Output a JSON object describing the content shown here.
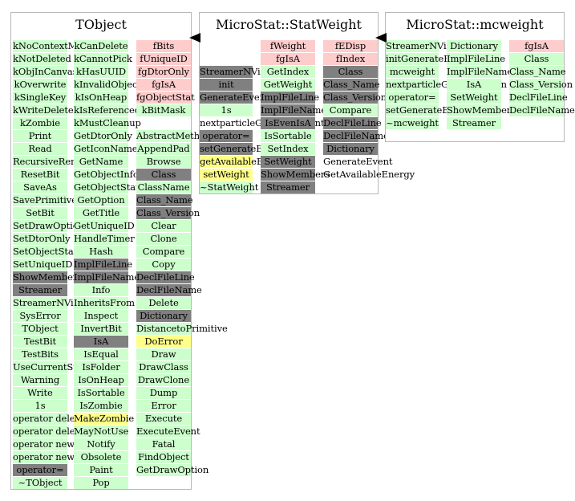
{
  "colors": {
    "pink": "#ffcccc",
    "green": "#ccffcc",
    "gray": "#808080",
    "yellow": "#ffff88",
    "border": "#b8b8b8"
  },
  "boxes": [
    {
      "title": "TObject",
      "columns": [
        [
          {
            "t": "kNoContextMenu",
            "c": "green"
          },
          {
            "t": "kNotDeleted",
            "c": "green"
          },
          {
            "t": "kObjInCanvas",
            "c": "green"
          },
          {
            "t": "kOverwrite",
            "c": "green"
          },
          {
            "t": "kSingleKey",
            "c": "green"
          },
          {
            "t": "kWriteDelete",
            "c": "green"
          },
          {
            "t": "kZombie",
            "c": "green"
          },
          {
            "t": "Print",
            "c": "green"
          },
          {
            "t": "Read",
            "c": "green"
          },
          {
            "t": "RecursiveRemove",
            "c": "green"
          },
          {
            "t": "ResetBit",
            "c": "green"
          },
          {
            "t": "SaveAs",
            "c": "green"
          },
          {
            "t": "SavePrimitive",
            "c": "green"
          },
          {
            "t": "SetBit",
            "c": "green"
          },
          {
            "t": "SetDrawOption",
            "c": "green"
          },
          {
            "t": "SetDtorOnly",
            "c": "green"
          },
          {
            "t": "SetObjectStat",
            "c": "green"
          },
          {
            "t": "SetUniqueID",
            "c": "green"
          },
          {
            "t": "ShowMembers",
            "c": "gray"
          },
          {
            "t": "Streamer",
            "c": "gray"
          },
          {
            "t": "StreamerNVirtual",
            "c": "green"
          },
          {
            "t": "SysError",
            "c": "green"
          },
          {
            "t": "TObject",
            "c": "green"
          },
          {
            "t": "TestBit",
            "c": "green"
          },
          {
            "t": "TestBits",
            "c": "green"
          },
          {
            "t": "UseCurrentStyle",
            "c": "green"
          },
          {
            "t": "Warning",
            "c": "green"
          },
          {
            "t": "Write",
            "c": "green"
          },
          {
            "t": "1s",
            "c": "green"
          },
          {
            "t": "operator delete",
            "c": "green"
          },
          {
            "t": "operator delete[]",
            "c": "green"
          },
          {
            "t": "operator new",
            "c": "green"
          },
          {
            "t": "operator new[]",
            "c": "green"
          },
          {
            "t": "operator=",
            "c": "gray"
          },
          {
            "t": "~TObject",
            "c": "green"
          }
        ],
        [
          {
            "t": "kCanDelete",
            "c": "green"
          },
          {
            "t": "kCannotPick",
            "c": "green"
          },
          {
            "t": "kHasUUID",
            "c": "green"
          },
          {
            "t": "kInvalidObject",
            "c": "green"
          },
          {
            "t": "kIsOnHeap",
            "c": "green"
          },
          {
            "t": "kIsReferenced",
            "c": "green"
          },
          {
            "t": "kMustCleanup",
            "c": "green"
          },
          {
            "t": "GetDtorOnly",
            "c": "green"
          },
          {
            "t": "GetIconName",
            "c": "green"
          },
          {
            "t": "GetName",
            "c": "green"
          },
          {
            "t": "GetObjectInfo",
            "c": "green"
          },
          {
            "t": "GetObjectStat",
            "c": "green"
          },
          {
            "t": "GetOption",
            "c": "green"
          },
          {
            "t": "GetTitle",
            "c": "green"
          },
          {
            "t": "GetUniqueID",
            "c": "green"
          },
          {
            "t": "HandleTimer",
            "c": "green"
          },
          {
            "t": "Hash",
            "c": "green"
          },
          {
            "t": "ImplFileLine",
            "c": "gray"
          },
          {
            "t": "ImplFileName",
            "c": "gray"
          },
          {
            "t": "Info",
            "c": "green"
          },
          {
            "t": "InheritsFrom",
            "c": "green"
          },
          {
            "t": "Inspect",
            "c": "green"
          },
          {
            "t": "InvertBit",
            "c": "green"
          },
          {
            "t": "IsA",
            "c": "gray"
          },
          {
            "t": "IsEqual",
            "c": "green"
          },
          {
            "t": "IsFolder",
            "c": "green"
          },
          {
            "t": "IsOnHeap",
            "c": "green"
          },
          {
            "t": "IsSortable",
            "c": "green"
          },
          {
            "t": "IsZombie",
            "c": "green"
          },
          {
            "t": "MakeZombie",
            "c": "yellow"
          },
          {
            "t": "MayNotUse",
            "c": "green"
          },
          {
            "t": "Notify",
            "c": "green"
          },
          {
            "t": "Obsolete",
            "c": "green"
          },
          {
            "t": "Paint",
            "c": "green"
          },
          {
            "t": "Pop",
            "c": "green"
          }
        ],
        [
          {
            "t": "fBits",
            "c": "pink"
          },
          {
            "t": "fUniqueID",
            "c": "pink"
          },
          {
            "t": "fgDtorOnly",
            "c": "pink"
          },
          {
            "t": "fgIsA",
            "c": "pink"
          },
          {
            "t": "fgObjectStat",
            "c": "pink"
          },
          {
            "t": "kBitMask",
            "c": "green"
          },
          {
            "t": "",
            "c": "none"
          },
          {
            "t": "AbstractMethod",
            "c": "green"
          },
          {
            "t": "AppendPad",
            "c": "green"
          },
          {
            "t": "Browse",
            "c": "green"
          },
          {
            "t": "Class",
            "c": "gray"
          },
          {
            "t": "ClassName",
            "c": "green"
          },
          {
            "t": "Class_Name",
            "c": "gray"
          },
          {
            "t": "Class_Version",
            "c": "gray"
          },
          {
            "t": "Clear",
            "c": "green"
          },
          {
            "t": "Clone",
            "c": "green"
          },
          {
            "t": "Compare",
            "c": "green"
          },
          {
            "t": "Copy",
            "c": "green"
          },
          {
            "t": "DeclFileLine",
            "c": "gray"
          },
          {
            "t": "DeclFileName",
            "c": "gray"
          },
          {
            "t": "Delete",
            "c": "green"
          },
          {
            "t": "Dictionary",
            "c": "gray"
          },
          {
            "t": "DistancetoPrimitive",
            "c": "green"
          },
          {
            "t": "DoError",
            "c": "yellow"
          },
          {
            "t": "Draw",
            "c": "green"
          },
          {
            "t": "DrawClass",
            "c": "green"
          },
          {
            "t": "DrawClone",
            "c": "green"
          },
          {
            "t": "Dump",
            "c": "green"
          },
          {
            "t": "Error",
            "c": "green"
          },
          {
            "t": "Execute",
            "c": "green"
          },
          {
            "t": "ExecuteEvent",
            "c": "green"
          },
          {
            "t": "Fatal",
            "c": "green"
          },
          {
            "t": "FindObject",
            "c": "green"
          },
          {
            "t": "GetDrawOption",
            "c": "green"
          }
        ]
      ]
    },
    {
      "title": "MicroStat::StatWeight",
      "columns": [
        [
          {
            "t": "",
            "c": "none"
          },
          {
            "t": "",
            "c": "none"
          },
          {
            "t": "StreamerNVirtual",
            "c": "gray"
          },
          {
            "t": "init",
            "c": "gray"
          },
          {
            "t": "GenerateEvent",
            "c": "gray"
          },
          {
            "t": "1s",
            "c": "green"
          },
          {
            "t": "nextparticleGenerateEvent",
            "c": "none"
          },
          {
            "t": "operator=",
            "c": "gray"
          },
          {
            "t": "setGenerateEvent",
            "c": "gray"
          },
          {
            "t": "getAvailableEnergy",
            "c": "yellow"
          },
          {
            "t": "setWeight",
            "c": "yellow"
          },
          {
            "t": "~StatWeight",
            "c": "green"
          }
        ],
        [
          {
            "t": "fWeight",
            "c": "pink"
          },
          {
            "t": "fgIsA",
            "c": "pink"
          },
          {
            "t": "GetIndex",
            "c": "green"
          },
          {
            "t": "GetWeight",
            "c": "green"
          },
          {
            "t": "ImplFileLine",
            "c": "gray"
          },
          {
            "t": "ImplFileName",
            "c": "gray"
          },
          {
            "t": "IsEvenIsA",
            "c": "gray"
          },
          {
            "t": "IsSortable",
            "c": "green"
          },
          {
            "t": "SetIndex",
            "c": "green"
          },
          {
            "t": "SetWeight",
            "c": "gray"
          },
          {
            "t": "ShowMembers",
            "c": "gray"
          },
          {
            "t": "Streamer",
            "c": "gray"
          }
        ],
        [
          {
            "t": "fEDisp",
            "c": "pink"
          },
          {
            "t": "fIndex",
            "c": "pink"
          },
          {
            "t": "Class",
            "c": "gray"
          },
          {
            "t": "Class_Name",
            "c": "gray"
          },
          {
            "t": "Class_Version",
            "c": "gray"
          },
          {
            "t": "Compare",
            "c": "green"
          },
          {
            "t": "DeclFileLine",
            "c": "gray"
          },
          {
            "t": "DeclFileName",
            "c": "gray"
          },
          {
            "t": "Dictionary",
            "c": "gray"
          },
          {
            "t": "GenerateEvent",
            "c": "none"
          },
          {
            "t": "GetAvailableEnergy",
            "c": "none"
          }
        ]
      ]
    },
    {
      "title": "MicroStat::mcweight",
      "columns": [
        [
          {
            "t": "StreamerNVirtual",
            "c": "green"
          },
          {
            "t": "initGenerateEvent",
            "c": "green"
          },
          {
            "t": "mcweight",
            "c": "green"
          },
          {
            "t": "nextparticleGenerateEven",
            "c": "green"
          },
          {
            "t": "operator=",
            "c": "green"
          },
          {
            "t": "setGenerateEvent",
            "c": "green"
          },
          {
            "t": "~mcweight",
            "c": "green"
          }
        ],
        [
          {
            "t": "Dictionary",
            "c": "green"
          },
          {
            "t": "ImplFileLine",
            "c": "green"
          },
          {
            "t": "ImplFileName",
            "c": "green"
          },
          {
            "t": "IsA",
            "c": "green"
          },
          {
            "t": "SetWeight",
            "c": "green"
          },
          {
            "t": "ShowMembers",
            "c": "green"
          },
          {
            "t": "Streamer",
            "c": "green"
          }
        ],
        [
          {
            "t": "fgIsA",
            "c": "pink"
          },
          {
            "t": "Class",
            "c": "green"
          },
          {
            "t": "Class_Name",
            "c": "green"
          },
          {
            "t": "Class_Version",
            "c": "green"
          },
          {
            "t": "DeclFileLine",
            "c": "green"
          },
          {
            "t": "DeclFileName",
            "c": "green"
          }
        ]
      ]
    }
  ]
}
